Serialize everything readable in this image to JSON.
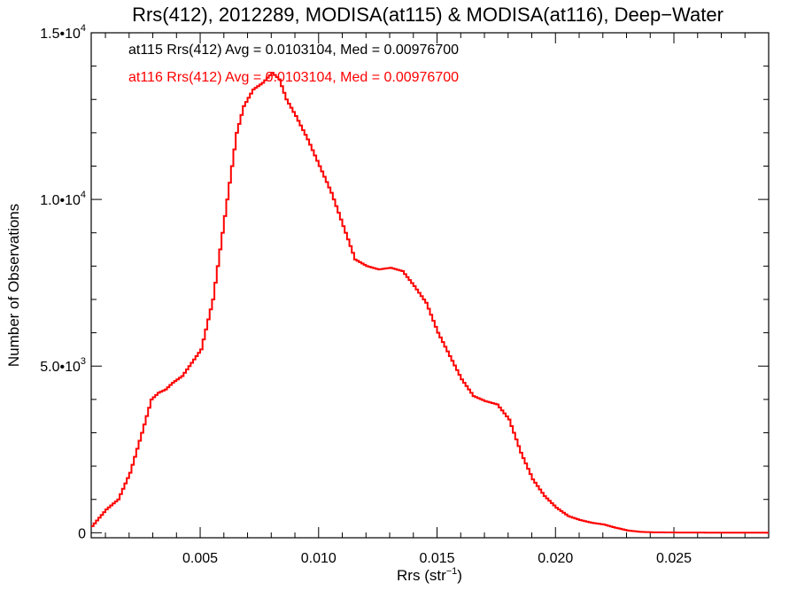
{
  "chart_data": {
    "type": "line",
    "title": "Rrs(412), 2012289, MODISA(at115) & MODISA(at116), Deep−Water",
    "xlabel_main": "Rrs (str",
    "xlabel_sup": "−1",
    "xlabel_close": ")",
    "ylabel": "Number of Observations",
    "xlim": [
      0.0004,
      0.029
    ],
    "ylim": [
      -150,
      15000
    ],
    "x_ticks": [
      {
        "value": 0.005,
        "label": "0.005"
      },
      {
        "value": 0.01,
        "label": "0.010"
      },
      {
        "value": 0.015,
        "label": "0.015"
      },
      {
        "value": 0.02,
        "label": "0.020"
      },
      {
        "value": 0.025,
        "label": "0.025"
      }
    ],
    "y_ticks": [
      {
        "value": 0,
        "mantissa": "0",
        "exp": ""
      },
      {
        "value": 5000,
        "mantissa": "5.0•10",
        "exp": "3"
      },
      {
        "value": 10000,
        "mantissa": "1.0•10",
        "exp": "4"
      },
      {
        "value": 15000,
        "mantissa": "1.5•10",
        "exp": "4"
      }
    ],
    "annotations": [
      {
        "text": "at115 Rrs(412) Avg = 0.0103104, Med = 0.00976700",
        "color": "#000000"
      },
      {
        "text": "at116 Rrs(412) Avg = 0.0103104, Med = 0.00976700",
        "color": "#ff0000"
      }
    ],
    "series": [
      {
        "color": "#ff0000",
        "step": true,
        "x": [
          0.0004,
          0.001,
          0.0015,
          0.002,
          0.0025,
          0.0029,
          0.0032,
          0.0035,
          0.0038,
          0.0042,
          0.0045,
          0.005,
          0.0055,
          0.006,
          0.0065,
          0.0068,
          0.0072,
          0.0076,
          0.008,
          0.0083,
          0.0086,
          0.009,
          0.0095,
          0.01,
          0.0105,
          0.011,
          0.0115,
          0.012,
          0.0125,
          0.013,
          0.0135,
          0.014,
          0.0145,
          0.015,
          0.0155,
          0.016,
          0.0165,
          0.017,
          0.0175,
          0.018,
          0.0185,
          0.019,
          0.0195,
          0.02,
          0.0205,
          0.021,
          0.0215,
          0.022,
          0.0225,
          0.023,
          0.0235,
          0.024,
          0.025,
          0.026,
          0.027,
          0.028,
          0.029
        ],
        "y": [
          200,
          700,
          1000,
          1800,
          3000,
          4000,
          4200,
          4300,
          4500,
          4700,
          5000,
          5500,
          7000,
          9500,
          12000,
          12800,
          13300,
          13500,
          13800,
          13600,
          13000,
          12500,
          11800,
          11000,
          10200,
          9200,
          8200,
          8000,
          7900,
          7950,
          7850,
          7400,
          6900,
          6000,
          5300,
          4600,
          4100,
          3950,
          3850,
          3400,
          2400,
          1600,
          1100,
          750,
          500,
          380,
          300,
          250,
          150,
          70,
          30,
          15,
          8,
          5,
          3,
          2,
          1
        ]
      }
    ]
  }
}
